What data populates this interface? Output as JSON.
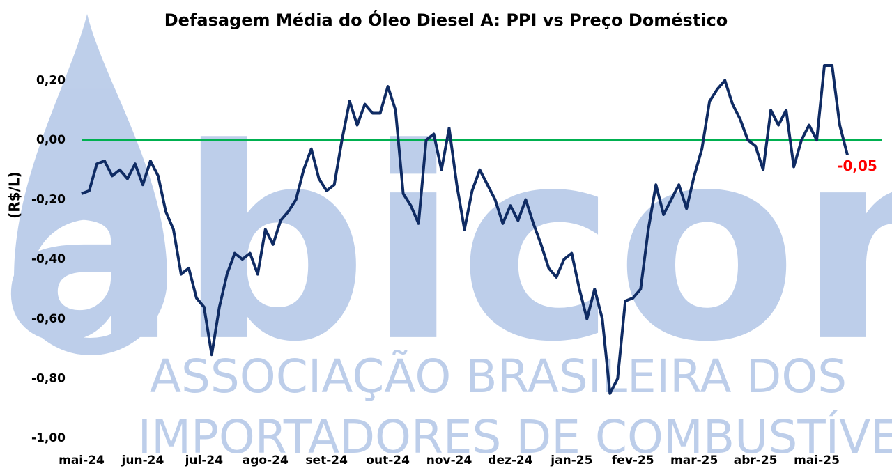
{
  "chart_data": {
    "type": "line",
    "title": "Defasagem Média do Óleo Diesel A: PPI vs Preço Doméstico",
    "y_label": "(R$/L)",
    "watermark": {
      "logo": "abicom",
      "lines": [
        "ASSOCIAÇÃO BRASILEIRA DOS",
        "IMPORTADORES DE COMBUSTÍVEIS"
      ]
    },
    "categories": [
      "mai-24",
      null,
      null,
      null,
      null,
      null,
      null,
      null,
      "jun-24",
      null,
      null,
      null,
      null,
      null,
      null,
      null,
      "jul-24",
      null,
      null,
      null,
      null,
      null,
      null,
      null,
      "ago-24",
      null,
      null,
      null,
      null,
      null,
      null,
      null,
      "set-24",
      null,
      null,
      null,
      null,
      null,
      null,
      null,
      "out-24",
      null,
      null,
      null,
      null,
      null,
      null,
      null,
      "nov-24",
      null,
      null,
      null,
      null,
      null,
      null,
      null,
      "dez-24",
      null,
      null,
      null,
      null,
      null,
      null,
      null,
      "jan-25",
      null,
      null,
      null,
      null,
      null,
      null,
      null,
      "fev-25",
      null,
      null,
      null,
      null,
      null,
      null,
      null,
      "mar-25",
      null,
      null,
      null,
      null,
      null,
      null,
      null,
      "abr-25",
      null,
      null,
      null,
      null,
      null,
      null,
      null,
      "mai-25",
      null,
      null,
      null,
      null
    ],
    "series": [
      {
        "name": null,
        "color": "#0f2b63",
        "values": [
          -0.18,
          -0.17,
          -0.08,
          -0.07,
          -0.12,
          -0.1,
          -0.13,
          -0.08,
          -0.15,
          -0.07,
          -0.12,
          -0.24,
          -0.3,
          -0.45,
          -0.43,
          -0.53,
          -0.56,
          -0.72,
          -0.56,
          -0.45,
          -0.38,
          -0.4,
          -0.38,
          -0.45,
          -0.3,
          -0.35,
          -0.27,
          -0.24,
          -0.2,
          -0.1,
          -0.03,
          -0.13,
          -0.17,
          -0.15,
          0.0,
          0.13,
          0.05,
          0.12,
          0.09,
          0.09,
          0.18,
          0.1,
          -0.18,
          -0.22,
          -0.28,
          0.0,
          0.02,
          -0.1,
          0.04,
          -0.15,
          -0.3,
          -0.17,
          -0.1,
          -0.15,
          -0.2,
          -0.28,
          -0.22,
          -0.27,
          -0.2,
          -0.28,
          -0.35,
          -0.43,
          -0.46,
          -0.4,
          -0.38,
          -0.5,
          -0.6,
          -0.5,
          -0.6,
          -0.85,
          -0.8,
          -0.54,
          -0.53,
          -0.5,
          -0.3,
          -0.15,
          -0.25,
          -0.2,
          -0.15,
          -0.23,
          -0.12,
          -0.03,
          0.13,
          0.17,
          0.2,
          0.12,
          0.07,
          0.0,
          -0.02,
          -0.1,
          0.1,
          0.05,
          0.1,
          -0.09,
          0.0,
          0.05,
          0.0,
          0.25,
          0.25,
          0.05,
          -0.05
        ],
        "value_labels": [
          null,
          null,
          null,
          null,
          null,
          null,
          null,
          null,
          null,
          null,
          null,
          null,
          null,
          null,
          null,
          null,
          null,
          null,
          null,
          null,
          null,
          null,
          null,
          null,
          null,
          null,
          null,
          null,
          null,
          null,
          null,
          null,
          null,
          null,
          null,
          null,
          null,
          null,
          null,
          null,
          null,
          null,
          null,
          null,
          null,
          null,
          null,
          null,
          null,
          null,
          null,
          null,
          null,
          null,
          null,
          null,
          null,
          null,
          null,
          null,
          null,
          null,
          null,
          null,
          null,
          null,
          null,
          null,
          null,
          null,
          null,
          null,
          null,
          null,
          null,
          null,
          null,
          null,
          null,
          null,
          null,
          null,
          null,
          null,
          null,
          null,
          null,
          null,
          null,
          null,
          null,
          null,
          null,
          null,
          null,
          null,
          null,
          null,
          null,
          null,
          "-0,05"
        ],
        "value_label_color": "#ff0000"
      }
    ],
    "ylim": [
      -1.0,
      0.3
    ],
    "yticks": [
      {
        "value": 0.2,
        "label": "0,20"
      },
      {
        "value": 0,
        "label": "0,00"
      },
      {
        "value": -0.2,
        "label": "-0,20"
      },
      {
        "value": -0.4,
        "label": "-0,40"
      },
      {
        "value": -0.6,
        "label": "-0,60"
      },
      {
        "value": -0.8,
        "label": "-0,80"
      },
      {
        "value": -1.0,
        "label": "-1,00"
      }
    ],
    "grid": false,
    "reference_line": {
      "value": 0,
      "color": "#00b050"
    }
  }
}
